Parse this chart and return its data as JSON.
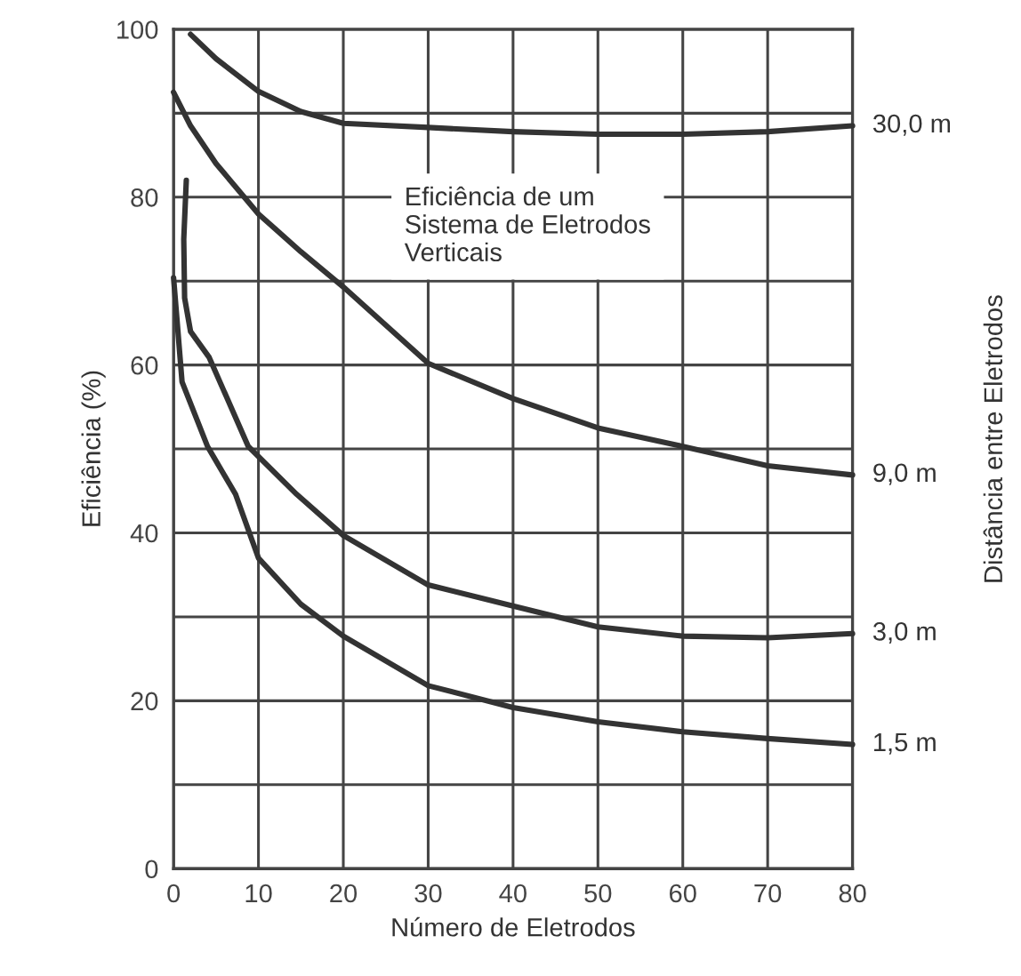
{
  "chart_data": {
    "type": "line",
    "xlabel": "Número de Eletrodos",
    "ylabel": "Eficiência (%)",
    "y2label": "Distância entre Eletrodos",
    "annotations": [
      "Eficiência de um\nSistema de Eletrodos\nVerticais"
    ],
    "xlim": [
      0,
      80
    ],
    "ylim": [
      0,
      100
    ],
    "xticks": [
      0,
      10,
      20,
      30,
      40,
      50,
      60,
      70,
      80
    ],
    "yticks": [
      0,
      {
        "value": 10,
        "label": null
      },
      20,
      {
        "value": 30,
        "label": null
      },
      40,
      {
        "value": 50,
        "label": null
      },
      60,
      {
        "value": 70,
        "label": null
      },
      80,
      {
        "value": 90,
        "label": null
      },
      100
    ],
    "grid": true,
    "legend": false,
    "marker": "none",
    "line_style": "solid",
    "series": [
      {
        "name": "30,0 m",
        "color": "#333333",
        "x": [
          2,
          5,
          10,
          15,
          20,
          30,
          40,
          50,
          60,
          70,
          80
        ],
        "values": [
          99.4,
          96.5,
          92.6,
          90.2,
          88.8,
          88.3,
          87.8,
          87.5,
          87.5,
          87.8,
          88.5
        ]
      },
      {
        "name": "9,0 m",
        "color": "#333333",
        "x": [
          0,
          2,
          5,
          10,
          15,
          20,
          30,
          40,
          50,
          60,
          70,
          80
        ],
        "values": [
          92.5,
          88.5,
          84,
          78,
          73.5,
          69.3,
          60.2,
          56,
          52.5,
          50.3,
          48,
          46.9
        ]
      },
      {
        "name": "3,0 m",
        "color": "#333333",
        "x": [
          1.5,
          1.2,
          1.3,
          2,
          4.2,
          8.8,
          14.5,
          20,
          30,
          40,
          50,
          60,
          70,
          80
        ],
        "values": [
          82,
          75,
          68,
          64,
          60.9,
          50.3,
          44.6,
          39.7,
          33.8,
          31.3,
          28.8,
          27.7,
          27.5,
          28
        ]
      },
      {
        "name": "1,5 m",
        "color": "#333333",
        "x": [
          0,
          1,
          4,
          7.3,
          10,
          15,
          20,
          30,
          40,
          50,
          60,
          70,
          80
        ],
        "values": [
          70.4,
          58,
          50.3,
          44.6,
          37,
          31.5,
          27.7,
          21.8,
          19.2,
          17.5,
          16.3,
          15.5,
          14.8
        ]
      }
    ]
  }
}
